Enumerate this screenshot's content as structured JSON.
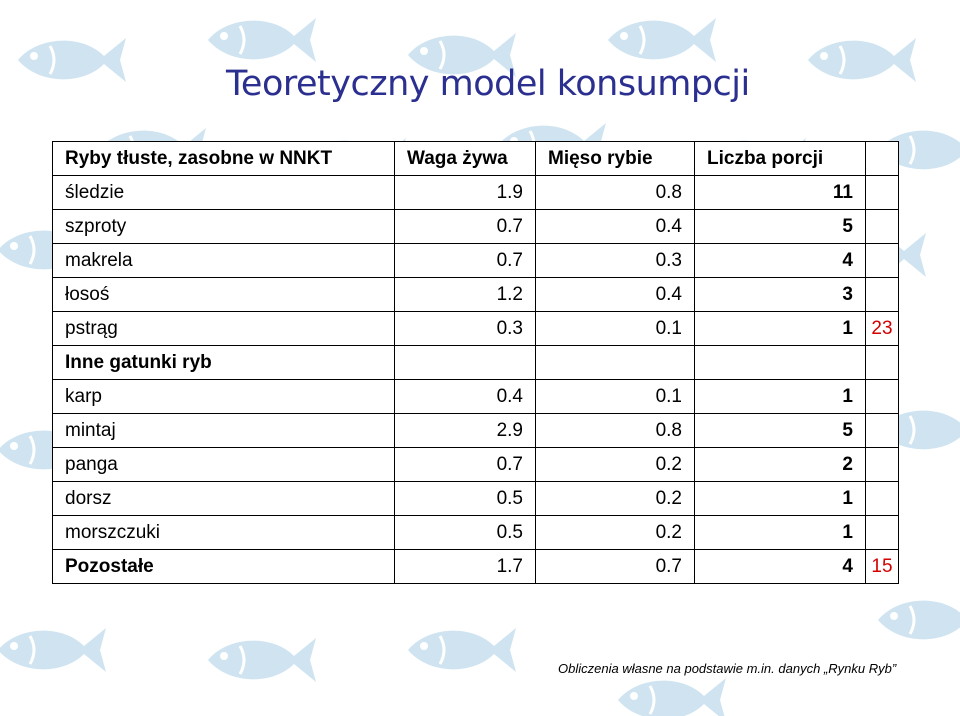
{
  "title": "Teoretyczny model konsumpcji",
  "table": {
    "header": [
      "Ryby tłuste, zasobne w NNKT",
      "Waga żywa",
      "Mięso rybie",
      "Liczba porcji",
      ""
    ],
    "rows": [
      [
        "śledzie",
        "1.9",
        "0.8",
        "11",
        ""
      ],
      [
        "szproty",
        "0.7",
        "0.4",
        "5",
        ""
      ],
      [
        "makrela",
        "0.7",
        "0.3",
        "4",
        ""
      ],
      [
        "łosoś",
        "1.2",
        "0.4",
        "3",
        ""
      ],
      [
        "pstrąg",
        "0.3",
        "0.1",
        "1",
        "23"
      ],
      [
        "Inne gatunki ryb",
        "",
        "",
        "",
        ""
      ],
      [
        "karp",
        "0.4",
        "0.1",
        "1",
        ""
      ],
      [
        "mintaj",
        "2.9",
        "0.8",
        "5",
        ""
      ],
      [
        "panga",
        "0.7",
        "0.2",
        "2",
        ""
      ],
      [
        "dorsz",
        "0.5",
        "0.2",
        "1",
        ""
      ],
      [
        "morszczuki",
        "0.5",
        "0.2",
        "1",
        ""
      ],
      [
        "Pozostałe",
        "1.7",
        "0.7",
        "4",
        "15"
      ]
    ]
  },
  "footnote": "Obliczenia własne na podstawie m.in. danych „Rynku Ryb”",
  "colors": {
    "title": "#2b2f8f",
    "fish": "#cfe4f0",
    "total": "#d40000"
  }
}
